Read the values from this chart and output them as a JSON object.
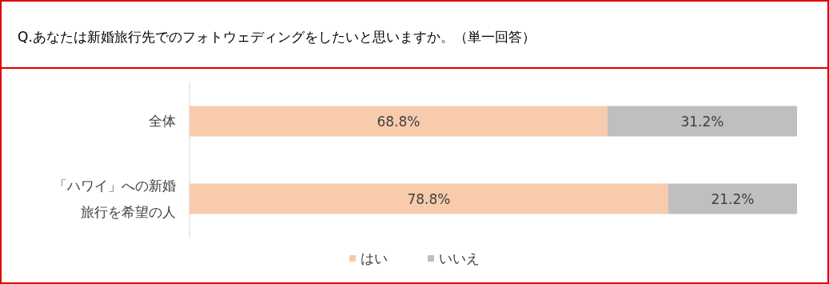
{
  "chart_data": {
    "type": "bar",
    "orientation": "horizontal",
    "stacked": true,
    "title": "Q.あなたは新婚旅行先でのフォトウェディングをしたいと思いますか。（単一回答）",
    "categories": [
      "全体",
      "「ハワイ」への新婚旅行を希望の人"
    ],
    "series": [
      {
        "name": "はい",
        "color": "#f8cbad",
        "values": [
          68.8,
          78.8
        ],
        "value_labels": [
          "68.8%",
          "78.8%"
        ]
      },
      {
        "name": "いいえ",
        "color": "#bfbfbf",
        "values": [
          31.2,
          21.2
        ],
        "value_labels": [
          "31.2%",
          "21.2%"
        ]
      }
    ],
    "legend": "bottom"
  }
}
